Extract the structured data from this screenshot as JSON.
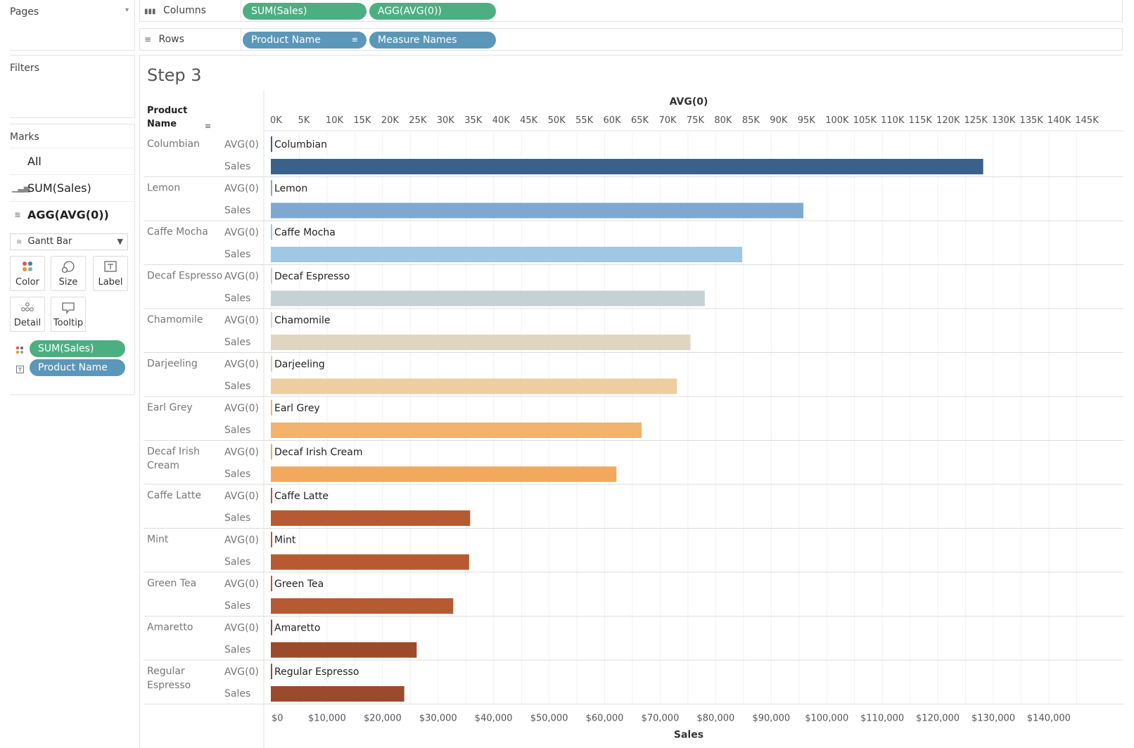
{
  "left_panel": {
    "pages_title": "Pages",
    "filters_title": "Filters",
    "marks_title": "Marks",
    "marks_rows": [
      {
        "icon": "all-icon",
        "label": "All"
      },
      {
        "icon": "bar-chart-icon",
        "label": "SUM(Sales)"
      },
      {
        "icon": "gantt-icon",
        "label": "AGG(AVG(0))"
      }
    ],
    "mark_type": "Gantt Bar",
    "mark_buttons": [
      {
        "icon": "color-icon",
        "label": "Color"
      },
      {
        "icon": "size-icon",
        "label": "Size"
      },
      {
        "icon": "label-icon",
        "label": "Label"
      },
      {
        "icon": "detail-icon",
        "label": "Detail"
      },
      {
        "icon": "tooltip-icon",
        "label": "Tooltip"
      }
    ],
    "mark_pills": [
      {
        "icon": "color-dots-icon",
        "label": "SUM(Sales)",
        "color": "#4caf82"
      },
      {
        "icon": "label-box-icon",
        "label": "Product Name",
        "color": "#5b97b8"
      }
    ]
  },
  "shelves": {
    "columns": {
      "label": "Columns",
      "pills": [
        "SUM(Sales)",
        "AGG(AVG(0))"
      ]
    },
    "rows": {
      "label": "Rows",
      "pills": [
        "Product Name",
        "Measure Names"
      ]
    }
  },
  "sheet_title": "Step 3",
  "chart_data": {
    "type": "bar",
    "row_header": "Product Name",
    "measure_names": [
      "AVG(0)",
      "Sales"
    ],
    "top_axis": {
      "title": "AVG(0)",
      "ticks": [
        "0K",
        "5K",
        "10K",
        "15K",
        "20K",
        "25K",
        "30K",
        "35K",
        "40K",
        "45K",
        "50K",
        "55K",
        "60K",
        "65K",
        "70K",
        "75K",
        "80K",
        "85K",
        "90K",
        "95K",
        "100K",
        "105K",
        "110K",
        "115K",
        "120K",
        "125K",
        "130K",
        "135K",
        "140K",
        "145K"
      ]
    },
    "bottom_axis": {
      "title": "Sales",
      "ticks": [
        "$0",
        "$10,000",
        "$20,000",
        "$30,000",
        "$40,000",
        "$50,000",
        "$60,000",
        "$70,000",
        "$80,000",
        "$90,000",
        "$100,000",
        "$110,000",
        "$120,000",
        "$130,000",
        "$140,000"
      ]
    },
    "xlim": [
      0,
      150000
    ],
    "grid": true,
    "categories": [
      "Columbian",
      "Lemon",
      "Caffe Mocha",
      "Decaf Espresso",
      "Chamomile",
      "Darjeeling",
      "Earl Grey",
      "Decaf Irish Cream",
      "Caffe Latte",
      "Mint",
      "Green Tea",
      "Amaretto",
      "Regular Espresso"
    ],
    "row_labels": [
      "Columbian",
      "Lemon",
      "Caffe Mocha",
      "Decaf Espresso",
      "Chamomile",
      "Darjeeling",
      "Earl Grey",
      "Decaf Irish\nCream",
      "Caffe Latte",
      "Mint",
      "Green Tea",
      "Amaretto",
      "Regular\nEspresso"
    ],
    "avg0_values": [
      0,
      0,
      0,
      0,
      0,
      0,
      0,
      0,
      0,
      0,
      0,
      0,
      0
    ],
    "sales_values": [
      128311,
      95926,
      84904,
      78162,
      75578,
      73151,
      66772,
      62248,
      35899,
      35710,
      32850,
      26269,
      24031
    ],
    "colors": [
      "#3a618c",
      "#7fa8d1",
      "#9ec8e3",
      "#c4d2d6",
      "#e0d5c1",
      "#eecda0",
      "#f2b36c",
      "#f2a95e",
      "#b75a32",
      "#b75a32",
      "#b75a32",
      "#9c4a2c",
      "#9c4a2c"
    ]
  }
}
